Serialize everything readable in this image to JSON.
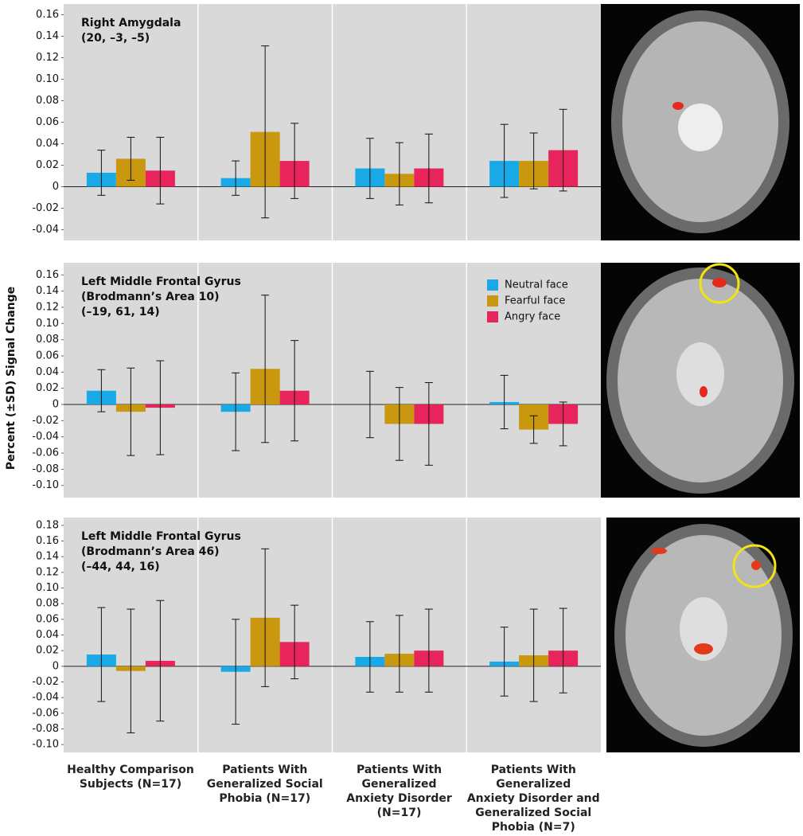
{
  "y_label": "Percent (±SD) Signal Change",
  "categories": [
    "Healthy Comparison\nSubjects (N=17)",
    "Patients With\nGeneralized Social\nPhobia (N=17)",
    "Patients With\nGeneralized\nAnxiety Disorder\n(N=17)",
    "Patients With\nGeneralized\nAnxiety Disorder and\nGeneralized Social\nPhobia (N=7)"
  ],
  "legend": [
    {
      "name": "Neutral face",
      "color": "#19a9e6"
    },
    {
      "name": "Fearful face",
      "color": "#c9980f"
    },
    {
      "name": "Angry face",
      "color": "#e8245c"
    }
  ],
  "chart_data": [
    {
      "type": "bar",
      "title_lines": [
        "Right Amygdala",
        "(20, –3, –5)"
      ],
      "ylim": [
        -0.05,
        0.17
      ],
      "yticks": [
        0.16,
        0.14,
        0.12,
        {
          "value": 0.1,
          "label": "0.10"
        },
        0.08,
        0.06,
        0.04,
        0.02,
        0,
        -0.02,
        -0.04
      ],
      "series": [
        {
          "values": [
            0.013,
            0.008,
            0.017,
            0.024
          ],
          "errors": [
            0.021,
            0.016,
            0.028,
            0.034
          ]
        },
        {
          "values": [
            0.026,
            0.051,
            0.012,
            0.024
          ],
          "errors": [
            0.02,
            0.08,
            0.029,
            0.026
          ]
        },
        {
          "values": [
            0.015,
            0.024,
            0.017,
            0.034
          ],
          "errors": [
            0.031,
            0.035,
            0.032,
            0.038
          ]
        }
      ]
    },
    {
      "type": "bar",
      "title_lines": [
        "Left Middle Frontal Gyrus",
        "(Brodmann’s Area 10)",
        "(–19, 61, 14)"
      ],
      "legend": true,
      "ylim": [
        -0.115,
        0.175
      ],
      "yticks": [
        0.16,
        0.14,
        0.12,
        {
          "value": 0.1,
          "label": "0.10"
        },
        0.08,
        0.06,
        0.04,
        0.02,
        0,
        -0.02,
        -0.04,
        -0.06,
        -0.08,
        {
          "value": -0.1,
          "label": "-0.10"
        }
      ],
      "series": [
        {
          "values": [
            0.017,
            -0.009,
            0.0,
            0.003
          ],
          "errors": [
            0.026,
            0.048,
            0.041,
            0.033
          ]
        },
        {
          "values": [
            -0.009,
            0.044,
            -0.024,
            -0.031
          ],
          "errors": [
            0.054,
            0.091,
            0.045,
            0.017
          ]
        },
        {
          "values": [
            -0.004,
            0.017,
            -0.024,
            -0.024
          ],
          "errors": [
            0.058,
            0.062,
            0.051,
            0.027
          ]
        }
      ]
    },
    {
      "type": "bar",
      "title_lines": [
        "Left Middle Frontal Gyrus",
        "(Brodmann’s Area 46)",
        "(–44, 44, 16)"
      ],
      "ylim": [
        -0.11,
        0.19
      ],
      "yticks": [
        0.18,
        0.16,
        0.14,
        0.12,
        {
          "value": 0.1,
          "label": "0.10"
        },
        0.08,
        0.06,
        0.04,
        0.02,
        0,
        -0.02,
        -0.04,
        -0.06,
        -0.08,
        {
          "value": -0.1,
          "label": "-0.10"
        }
      ],
      "series": [
        {
          "values": [
            0.015,
            -0.007,
            0.012,
            0.006
          ],
          "errors": [
            0.06,
            0.067,
            0.045,
            0.044
          ]
        },
        {
          "values": [
            -0.006,
            0.062,
            0.016,
            0.014
          ],
          "errors": [
            0.079,
            0.088,
            0.049,
            0.059
          ]
        },
        {
          "values": [
            0.007,
            0.031,
            0.02,
            0.02
          ],
          "errors": [
            0.077,
            0.047,
            0.053,
            0.054
          ]
        }
      ]
    }
  ]
}
